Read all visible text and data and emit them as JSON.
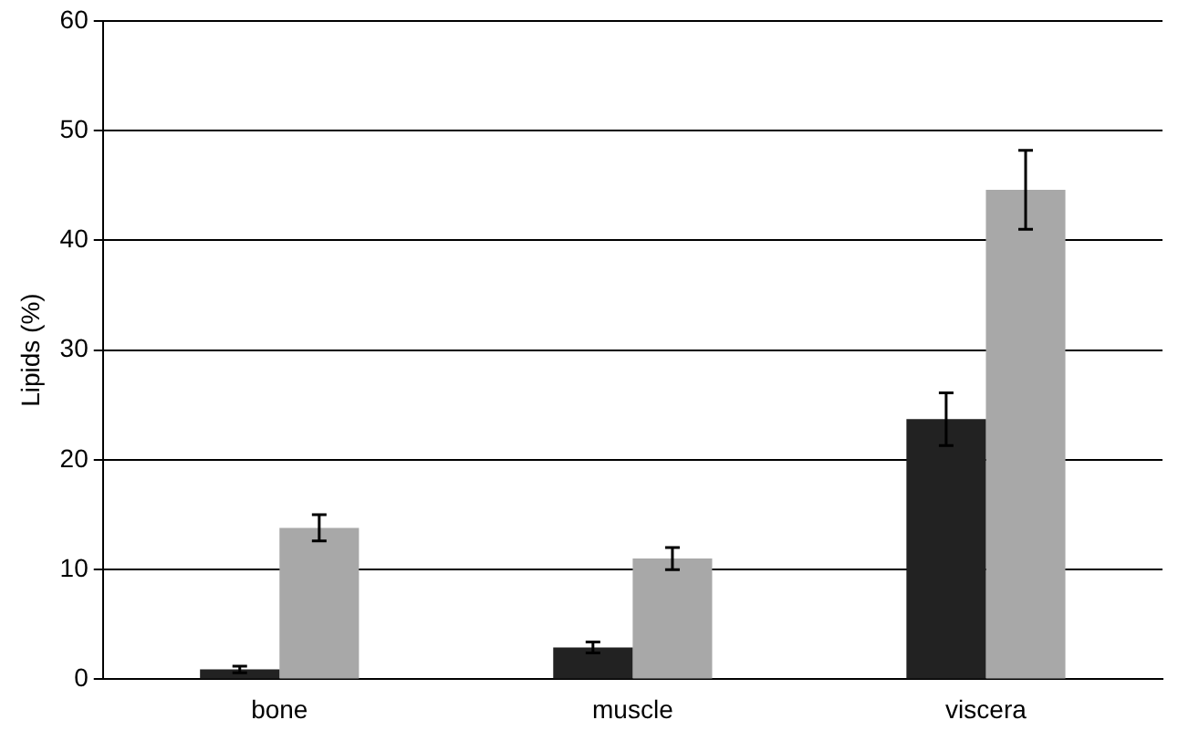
{
  "chart_data": {
    "type": "bar",
    "ylabel": "Lipids (%)",
    "categories": [
      "bone",
      "muscle",
      "viscera"
    ],
    "series": [
      {
        "color": "#222222",
        "values": [
          0.9,
          2.9,
          23.7
        ],
        "errors": [
          0.3,
          0.5,
          2.4
        ]
      },
      {
        "color": "#a8a8a8",
        "values": [
          13.8,
          11.0,
          44.6
        ],
        "errors": [
          1.2,
          1.0,
          3.6
        ]
      }
    ],
    "ylim": [
      0,
      60
    ],
    "yticks": [
      0,
      10,
      20,
      30,
      40,
      50,
      60
    ],
    "grid": "y",
    "legend": false
  }
}
